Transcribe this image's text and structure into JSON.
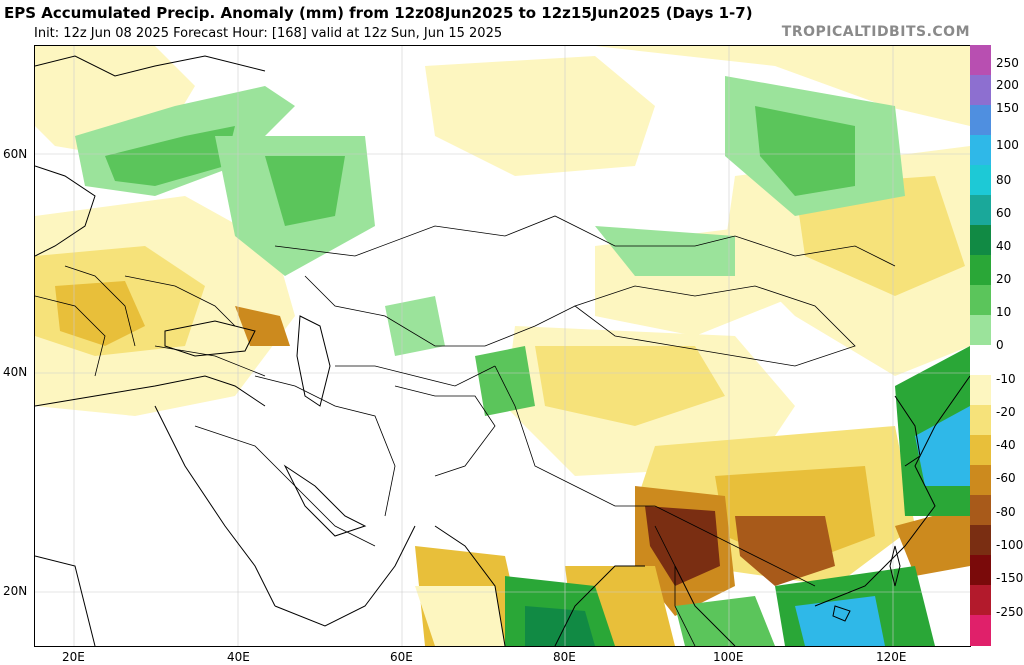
{
  "header": {
    "title": "EPS Accumulated Precip. Anomaly (mm) from 12z08Jun2025 to 12z15Jun2025 (Days 1-7)",
    "subtitle": "Init: 12z Jun 08 2025   Forecast Hour: [168]   valid at 12z Sun, Jun 15 2025",
    "brand": "TROPICALTIDBITS.COM"
  },
  "axes": {
    "lat_labels": [
      "60N",
      "40N",
      "20N"
    ],
    "lon_labels": [
      "20E",
      "40E",
      "60E",
      "80E",
      "100E",
      "120E"
    ]
  },
  "colorbar": {
    "labels": [
      "250",
      "200",
      "150",
      "100",
      "80",
      "60",
      "40",
      "20",
      "10",
      "0",
      "-10",
      "-20",
      "-40",
      "-60",
      "-80",
      "-100",
      "-150",
      "-250"
    ],
    "colors": [
      "#b84fb1",
      "#8d6fd0",
      "#4f8fe0",
      "#2fb8e8",
      "#1dc9d6",
      "#1aa89a",
      "#118a44",
      "#2aa737",
      "#5bc55b",
      "#9be39b",
      "#ffffff",
      "#fdf6c0",
      "#f6e27a",
      "#e8bf3a",
      "#cc8a1e",
      "#a85a1a",
      "#7a2e12",
      "#7a0a0a",
      "#b31a2c",
      "#e0206a"
    ]
  },
  "map_regions": {
    "wet_colors": [
      "#9be39b",
      "#5bc55b",
      "#2aa737",
      "#1aa89a",
      "#2fb8e8"
    ],
    "dry_colors": [
      "#fdf6c0",
      "#f6e27a",
      "#e8bf3a",
      "#cc8a1e",
      "#a85a1a",
      "#7a2e12"
    ]
  }
}
